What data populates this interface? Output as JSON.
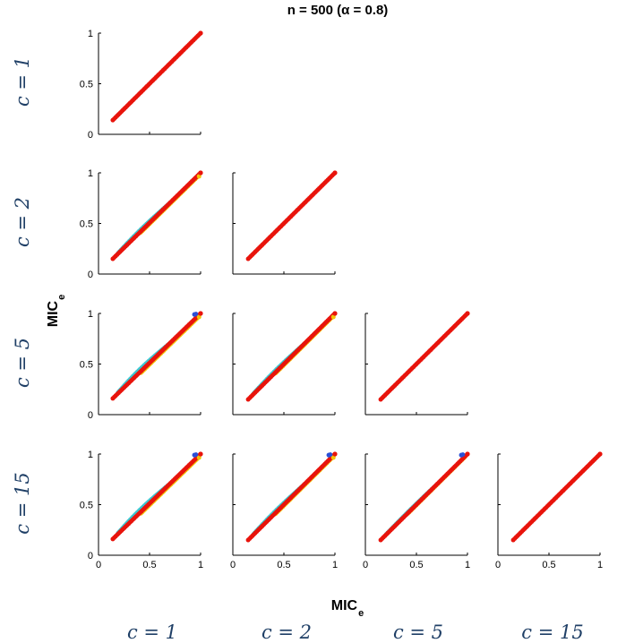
{
  "chart_data": {
    "type": "scatter",
    "title": "n = 500  (α = 0.8)",
    "xlabel": "MIC",
    "xlabel_sub": "e",
    "ylabel": "MIC",
    "ylabel_sub": "e",
    "row_labels": [
      "c = 1",
      "c = 2",
      "c = 5",
      "c = 15"
    ],
    "col_labels": [
      "c = 1",
      "c = 2",
      "c = 5",
      "c = 15"
    ],
    "xlim": [
      0,
      1
    ],
    "ylim": [
      0,
      1
    ],
    "ticks": [
      0,
      0.5,
      1
    ],
    "tick_labels": [
      "0",
      "0.5",
      "1"
    ],
    "colors": {
      "main": "#e8140c",
      "overlay_cyan": "#3cc8d2",
      "overlay_yellow": "#f2c40a",
      "overlay_blue": "#2a4fd6"
    },
    "panels": [
      {
        "row": 0,
        "col": 0,
        "x_start": 0.14,
        "y_start": 0.14,
        "spread": 0.0,
        "blue_top": false,
        "yellow_top": false
      },
      {
        "row": 1,
        "col": 0,
        "x_start": 0.14,
        "y_start": 0.15,
        "spread": 0.02,
        "blue_top": false,
        "yellow_top": true
      },
      {
        "row": 1,
        "col": 1,
        "x_start": 0.15,
        "y_start": 0.15,
        "spread": 0.0,
        "blue_top": false,
        "yellow_top": false
      },
      {
        "row": 2,
        "col": 0,
        "x_start": 0.14,
        "y_start": 0.16,
        "spread": 0.03,
        "blue_top": true,
        "yellow_top": true
      },
      {
        "row": 2,
        "col": 1,
        "x_start": 0.15,
        "y_start": 0.15,
        "spread": 0.02,
        "blue_top": false,
        "yellow_top": true
      },
      {
        "row": 2,
        "col": 2,
        "x_start": 0.15,
        "y_start": 0.15,
        "spread": 0.0,
        "blue_top": false,
        "yellow_top": false
      },
      {
        "row": 3,
        "col": 0,
        "x_start": 0.14,
        "y_start": 0.16,
        "spread": 0.03,
        "blue_top": true,
        "yellow_top": true
      },
      {
        "row": 3,
        "col": 1,
        "x_start": 0.15,
        "y_start": 0.15,
        "spread": 0.02,
        "blue_top": true,
        "yellow_top": true
      },
      {
        "row": 3,
        "col": 2,
        "x_start": 0.15,
        "y_start": 0.15,
        "spread": 0.01,
        "blue_top": true,
        "yellow_top": false
      },
      {
        "row": 3,
        "col": 3,
        "x_start": 0.15,
        "y_start": 0.15,
        "spread": 0.0,
        "blue_top": false,
        "yellow_top": false
      }
    ]
  }
}
